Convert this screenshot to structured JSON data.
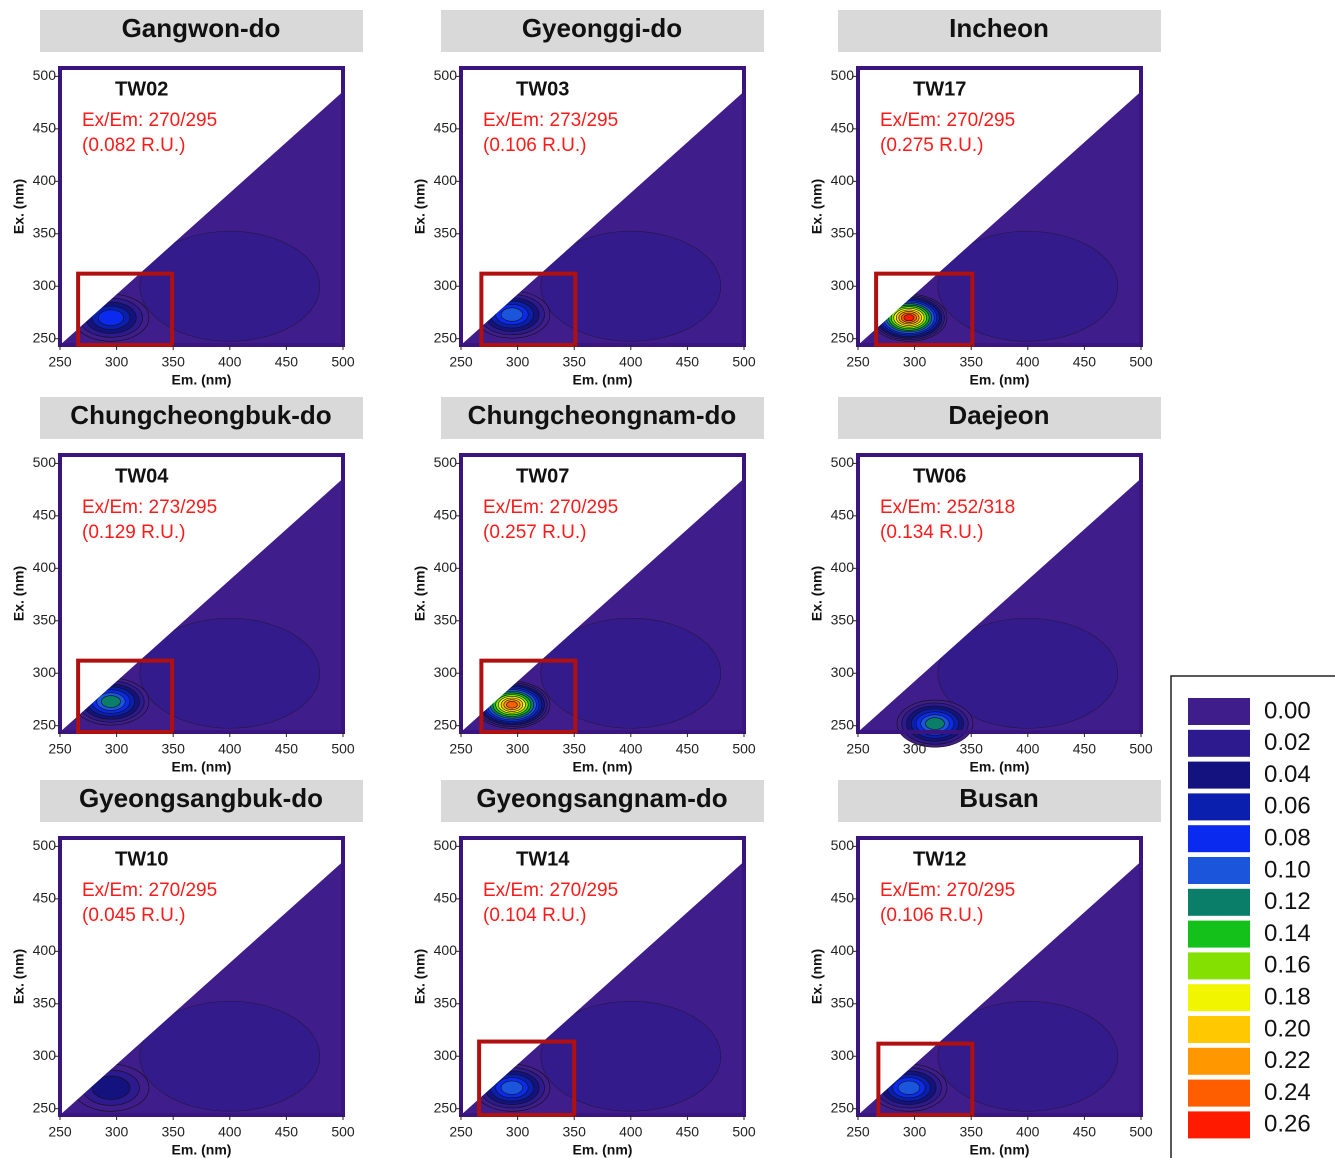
{
  "chart_data": [
    {
      "type": "contour",
      "title": "Gangwon-do",
      "sample": "TW02",
      "xlabel": "Em. (nm)",
      "ylabel": "Ex. (nm)",
      "xlim": [
        250,
        500
      ],
      "ylim": [
        244,
        508
      ],
      "xticks": [
        250,
        300,
        350,
        400,
        450,
        500
      ],
      "yticks": [
        250,
        300,
        350,
        400,
        450,
        500
      ],
      "peak": {
        "label": "Ex/Em: 270/295",
        "x": 295,
        "y": 270,
        "value": 0.082,
        "value_label": "(0.082 R.U.)"
      },
      "box": {
        "xlim": [
          266,
          349
        ],
        "ylim": [
          244,
          312
        ]
      }
    },
    {
      "type": "contour",
      "title": "Gyeonggi-do",
      "sample": "TW03",
      "xlabel": "Em. (nm)",
      "ylabel": "Ex. (nm)",
      "xlim": [
        250,
        500
      ],
      "ylim": [
        244,
        508
      ],
      "xticks": [
        250,
        300,
        350,
        400,
        450,
        500
      ],
      "yticks": [
        250,
        300,
        350,
        400,
        450,
        500
      ],
      "peak": {
        "label": "Ex/Em: 273/295",
        "x": 295,
        "y": 273,
        "value": 0.106,
        "value_label": "(0.106 R.U.)"
      },
      "box": {
        "xlim": [
          268,
          351
        ],
        "ylim": [
          244,
          312
        ]
      }
    },
    {
      "type": "contour",
      "title": "Incheon",
      "sample": "TW17",
      "xlabel": "Em. (nm)",
      "ylabel": "Ex. (nm)",
      "xlim": [
        250,
        500
      ],
      "ylim": [
        244,
        508
      ],
      "xticks": [
        250,
        300,
        350,
        400,
        450,
        500
      ],
      "yticks": [
        250,
        300,
        350,
        400,
        450,
        500
      ],
      "peak": {
        "label": "Ex/Em: 270/295",
        "x": 295,
        "y": 270,
        "value": 0.275,
        "value_label": "(0.275 R.U.)"
      },
      "box": {
        "xlim": [
          266,
          351
        ],
        "ylim": [
          244,
          312
        ]
      }
    },
    {
      "type": "contour",
      "title": "Chungcheongbuk-do",
      "sample": "TW04",
      "xlabel": "Em. (nm)",
      "ylabel": "Ex. (nm)",
      "xlim": [
        250,
        500
      ],
      "ylim": [
        244,
        508
      ],
      "xticks": [
        250,
        300,
        350,
        400,
        450,
        500
      ],
      "yticks": [
        250,
        300,
        350,
        400,
        450,
        500
      ],
      "peak": {
        "label": "Ex/Em: 273/295",
        "x": 295,
        "y": 273,
        "value": 0.129,
        "value_label": "(0.129 R.U.)"
      },
      "box": {
        "xlim": [
          266,
          349
        ],
        "ylim": [
          244,
          312
        ]
      }
    },
    {
      "type": "contour",
      "title": "Chungcheongnam-do",
      "sample": "TW07",
      "xlabel": "Em. (nm)",
      "ylabel": "Ex. (nm)",
      "xlim": [
        250,
        500
      ],
      "ylim": [
        244,
        508
      ],
      "xticks": [
        250,
        300,
        350,
        400,
        450,
        500
      ],
      "yticks": [
        250,
        300,
        350,
        400,
        450,
        500
      ],
      "peak": {
        "label": "Ex/Em: 270/295",
        "x": 295,
        "y": 270,
        "value": 0.257,
        "value_label": "(0.257 R.U.)"
      },
      "box": {
        "xlim": [
          268,
          351
        ],
        "ylim": [
          244,
          312
        ]
      }
    },
    {
      "type": "contour",
      "title": "Daejeon",
      "sample": "TW06",
      "xlabel": "Em. (nm)",
      "ylabel": "Ex. (nm)",
      "xlim": [
        250,
        500
      ],
      "ylim": [
        244,
        508
      ],
      "xticks": [
        250,
        300,
        350,
        400,
        450,
        500
      ],
      "yticks": [
        250,
        300,
        350,
        400,
        450,
        500
      ],
      "peak": {
        "label": "Ex/Em: 252/318",
        "x": 318,
        "y": 252,
        "value": 0.134,
        "value_label": "(0.134 R.U.)"
      }
    },
    {
      "type": "contour",
      "title": "Gyeongsangbuk-do",
      "sample": "TW10",
      "xlabel": "Em. (nm)",
      "ylabel": "Ex. (nm)",
      "xlim": [
        250,
        500
      ],
      "ylim": [
        244,
        508
      ],
      "xticks": [
        250,
        300,
        350,
        400,
        450,
        500
      ],
      "yticks": [
        250,
        300,
        350,
        400,
        450,
        500
      ],
      "peak": {
        "label": "Ex/Em: 270/295",
        "x": 295,
        "y": 270,
        "value": 0.045,
        "value_label": "(0.045 R.U.)"
      }
    },
    {
      "type": "contour",
      "title": "Gyeongsangnam-do",
      "sample": "TW14",
      "xlabel": "Em. (nm)",
      "ylabel": "Ex. (nm)",
      "xlim": [
        250,
        500
      ],
      "ylim": [
        244,
        508
      ],
      "xticks": [
        250,
        300,
        350,
        400,
        450,
        500
      ],
      "yticks": [
        250,
        300,
        350,
        400,
        450,
        500
      ],
      "peak": {
        "label": "Ex/Em: 270/295",
        "x": 295,
        "y": 270,
        "value": 0.104,
        "value_label": "(0.104 R.U.)"
      },
      "box": {
        "xlim": [
          266,
          350
        ],
        "ylim": [
          244,
          314
        ]
      }
    },
    {
      "type": "contour",
      "title": "Busan",
      "sample": "TW12",
      "xlabel": "Em. (nm)",
      "ylabel": "Ex. (nm)",
      "xlim": [
        250,
        500
      ],
      "ylim": [
        244,
        508
      ],
      "xticks": [
        250,
        300,
        350,
        400,
        450,
        500
      ],
      "yticks": [
        250,
        300,
        350,
        400,
        450,
        500
      ],
      "peak": {
        "label": "Ex/Em: 270/295",
        "x": 295,
        "y": 270,
        "value": 0.106,
        "value_label": "(0.106 R.U.)"
      },
      "box": {
        "xlim": [
          268,
          351
        ],
        "ylim": [
          244,
          312
        ]
      }
    }
  ],
  "colorbar": {
    "levels": [
      {
        "value": 0,
        "label": "0.00"
      },
      {
        "value": 0.02,
        "label": "0.02"
      },
      {
        "value": 0.04,
        "label": "0.04"
      },
      {
        "value": 0.06,
        "label": "0.06"
      },
      {
        "value": 0.08,
        "label": "0.08"
      },
      {
        "value": 0.1,
        "label": "0.10"
      },
      {
        "value": 0.12,
        "label": "0.12"
      },
      {
        "value": 0.14,
        "label": "0.14"
      },
      {
        "value": 0.16,
        "label": "0.16"
      },
      {
        "value": 0.18,
        "label": "0.18"
      },
      {
        "value": 0.2,
        "label": "0.20"
      },
      {
        "value": 0.22,
        "label": "0.22"
      },
      {
        "value": 0.24,
        "label": "0.24"
      },
      {
        "value": 0.26,
        "label": "0.26"
      }
    ],
    "colors": [
      "#3f1d8a",
      "#2c1a8e",
      "#14127e",
      "#0a1fae",
      "#0b2af0",
      "#1a55dc",
      "#0a7e68",
      "#14c01a",
      "#84e000",
      "#f2f500",
      "#ffc800",
      "#ff9800",
      "#ff5e00",
      "#ff1a00"
    ]
  }
}
